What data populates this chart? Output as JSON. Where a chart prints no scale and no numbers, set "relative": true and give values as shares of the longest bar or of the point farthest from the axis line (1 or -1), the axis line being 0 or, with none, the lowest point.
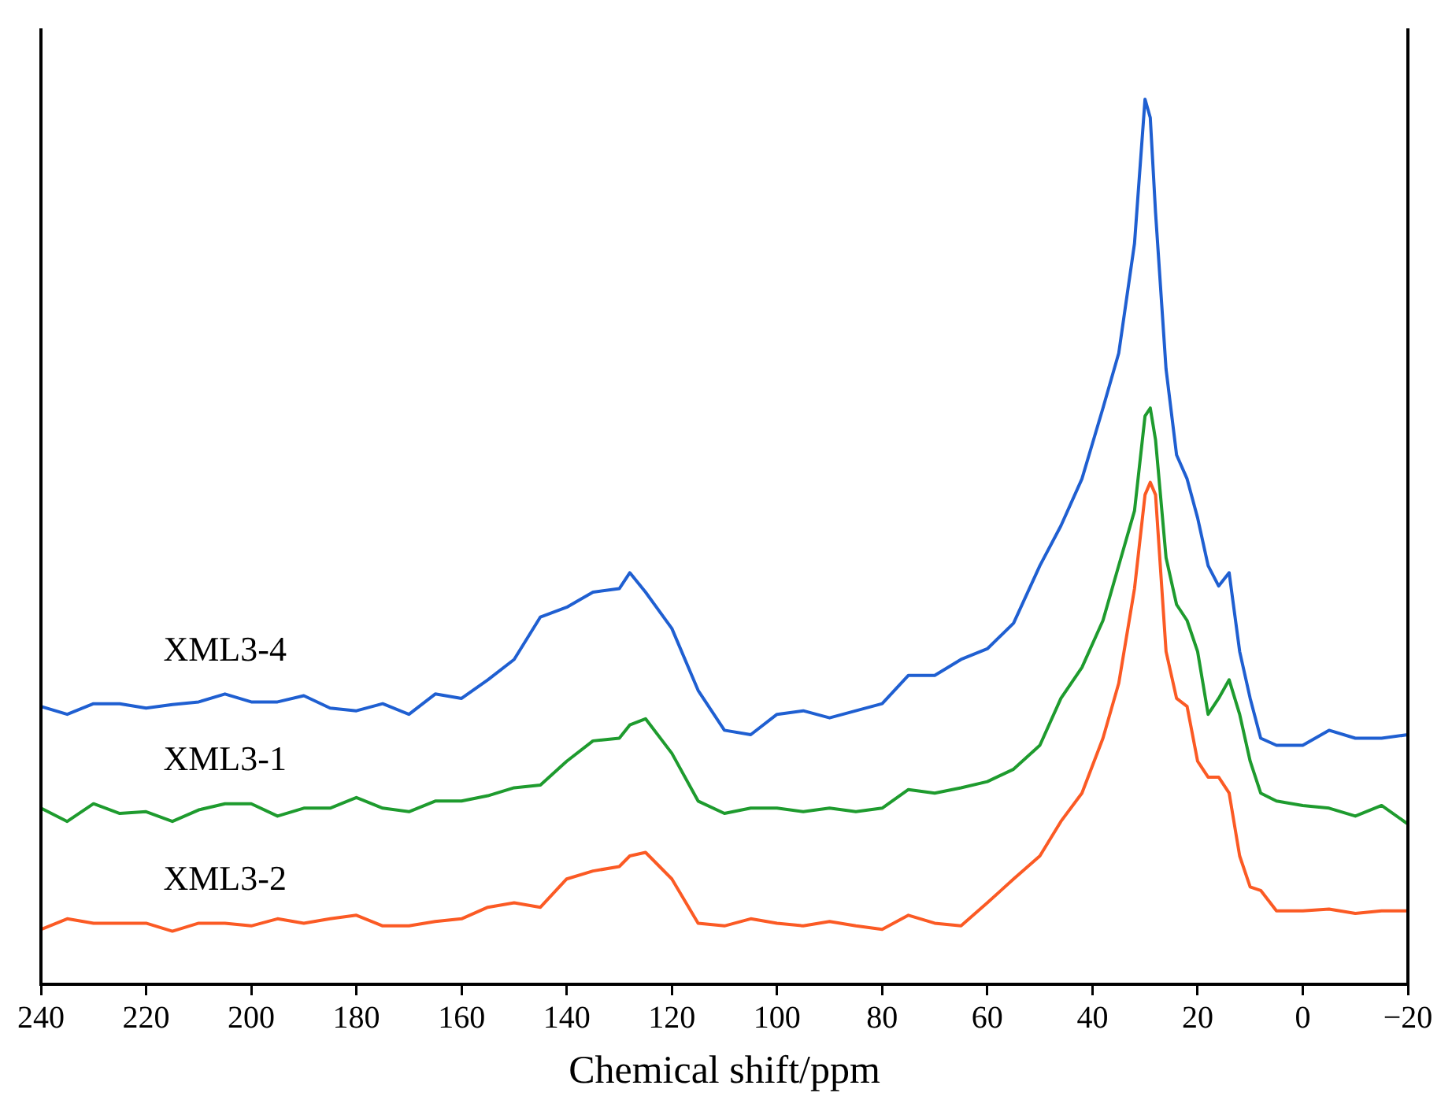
{
  "chart_data": {
    "type": "line",
    "xlabel": "Chemical shift/ppm",
    "relative": true,
    "legend": false,
    "grid": false,
    "marker": "none",
    "line_style": "solid",
    "tick_labels": "x",
    "xlim": [
      240,
      -20
    ],
    "xticks": [
      240,
      220,
      200,
      180,
      160,
      140,
      120,
      100,
      80,
      60,
      40,
      20,
      0,
      {
        "value": -20,
        "label": "−20"
      }
    ],
    "x": [
      240,
      235,
      230,
      225,
      220,
      215,
      210,
      205,
      200,
      195,
      190,
      185,
      180,
      175,
      170,
      165,
      160,
      155,
      150,
      145,
      140,
      135,
      130,
      128,
      125,
      120,
      115,
      110,
      105,
      100,
      95,
      90,
      85,
      80,
      75,
      70,
      65,
      60,
      55,
      50,
      46,
      42,
      38,
      35,
      32,
      30,
      29,
      28,
      26,
      24,
      22,
      20,
      18,
      16,
      14,
      12,
      10,
      8,
      5,
      0,
      -5,
      -10,
      -15,
      -20
    ],
    "series": [
      {
        "name": "XML3-4",
        "color": "#1f5fd1",
        "values": [
          0.314,
          0.305,
          0.317,
          0.317,
          0.312,
          0.316,
          0.319,
          0.328,
          0.319,
          0.319,
          0.326,
          0.312,
          0.309,
          0.317,
          0.305,
          0.328,
          0.323,
          0.344,
          0.367,
          0.415,
          0.426,
          0.443,
          0.447,
          0.465,
          0.443,
          0.402,
          0.332,
          0.287,
          0.282,
          0.305,
          0.309,
          0.301,
          0.309,
          0.317,
          0.349,
          0.349,
          0.367,
          0.379,
          0.408,
          0.473,
          0.518,
          0.571,
          0.651,
          0.713,
          0.837,
          1,
          0.979,
          0.872,
          0.695,
          0.598,
          0.571,
          0.527,
          0.473,
          0.45,
          0.465,
          0.376,
          0.323,
          0.278,
          0.27,
          0.27,
          0.287,
          0.278,
          0.278,
          0.282
        ]
      },
      {
        "name": "XML3-1",
        "color": "#1e9b2e",
        "values": [
          0.199,
          0.184,
          0.204,
          0.193,
          0.195,
          0.184,
          0.197,
          0.204,
          0.204,
          0.19,
          0.199,
          0.199,
          0.211,
          0.199,
          0.195,
          0.207,
          0.207,
          0.213,
          0.222,
          0.225,
          0.252,
          0.275,
          0.278,
          0.293,
          0.3,
          0.261,
          0.207,
          0.193,
          0.199,
          0.199,
          0.195,
          0.199,
          0.195,
          0.199,
          0.22,
          0.216,
          0.222,
          0.229,
          0.243,
          0.27,
          0.323,
          0.358,
          0.411,
          0.473,
          0.535,
          0.642,
          0.651,
          0.615,
          0.482,
          0.429,
          0.411,
          0.376,
          0.305,
          0.323,
          0.344,
          0.305,
          0.252,
          0.216,
          0.207,
          0.202,
          0.199,
          0.19,
          0.202,
          0.181
        ]
      },
      {
        "name": "XML3-2",
        "color": "#fb5a24",
        "values": [
          0.062,
          0.074,
          0.069,
          0.069,
          0.069,
          0.06,
          0.069,
          0.069,
          0.066,
          0.074,
          0.069,
          0.074,
          0.078,
          0.066,
          0.066,
          0.071,
          0.074,
          0.087,
          0.092,
          0.087,
          0.119,
          0.128,
          0.133,
          0.145,
          0.149,
          0.119,
          0.069,
          0.066,
          0.074,
          0.069,
          0.066,
          0.071,
          0.066,
          0.062,
          0.078,
          0.069,
          0.066,
          0.092,
          0.119,
          0.145,
          0.184,
          0.216,
          0.278,
          0.34,
          0.447,
          0.553,
          0.567,
          0.553,
          0.376,
          0.323,
          0.314,
          0.252,
          0.234,
          0.234,
          0.216,
          0.145,
          0.11,
          0.106,
          0.083,
          0.083,
          0.085,
          0.08,
          0.083,
          0.083
        ]
      }
    ]
  }
}
